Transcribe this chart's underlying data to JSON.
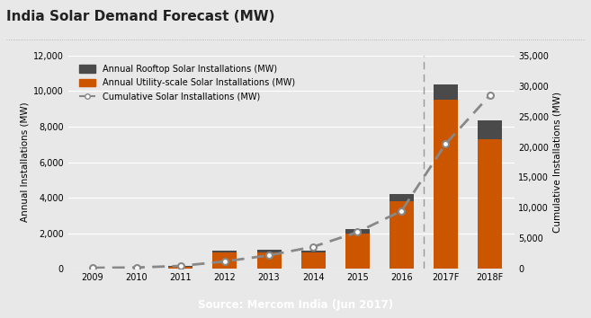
{
  "title": "India Solar Demand Forecast (MW)",
  "years": [
    "2009",
    "2010",
    "2011",
    "2012",
    "2013",
    "2014",
    "2015",
    "2016",
    "2017F",
    "2018F"
  ],
  "utility_solar": [
    15,
    10,
    100,
    900,
    930,
    920,
    2000,
    3800,
    9500,
    7300
  ],
  "rooftop_solar": [
    10,
    10,
    80,
    130,
    130,
    100,
    230,
    430,
    900,
    1050
  ],
  "cumulative_solar": [
    150,
    200,
    460,
    1200,
    2200,
    3600,
    6000,
    9500,
    20500,
    28500
  ],
  "utility_color": "#cc5500",
  "rooftop_color": "#4a4a4a",
  "line_color": "#888888",
  "ylabel_left": "Annual Installations (MW)",
  "ylabel_right": "Cumulative Installations (MW)",
  "ylim_left": [
    0,
    12000
  ],
  "ylim_right": [
    0,
    35000
  ],
  "yticks_left": [
    0,
    2000,
    4000,
    6000,
    8000,
    10000,
    12000
  ],
  "yticks_right": [
    0,
    5000,
    10000,
    15000,
    20000,
    25000,
    30000,
    35000
  ],
  "legend_rooftop": "Annual Rooftop Solar Installations (MW)",
  "legend_utility": "Annual Utility-scale Solar Installations (MW)",
  "legend_cumulative": "Cumulative Solar Installations (MW)",
  "source_text": "Source: Mercom India (Jun 2017)",
  "source_bg": "#666666",
  "source_text_color": "#ffffff",
  "bg_color": "#e8e8e8",
  "plot_bg_color": "#e8e8e8",
  "title_fontsize": 11,
  "axis_fontsize": 7,
  "label_fontsize": 7.5,
  "legend_fontsize": 7
}
